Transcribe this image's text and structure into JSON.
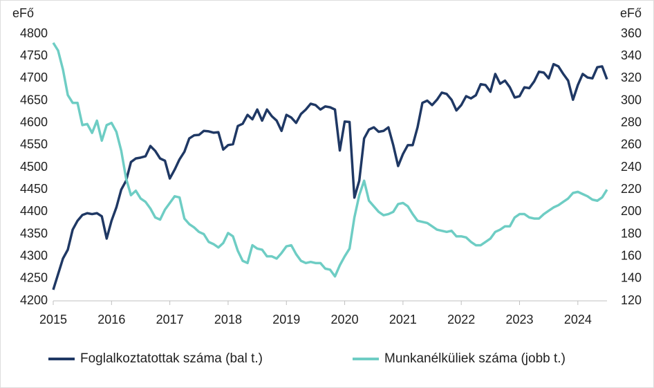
{
  "chart_data": {
    "type": "line",
    "y_label": "eFő",
    "y2_label": "eFő",
    "categories": [
      "2015",
      null,
      null,
      null,
      null,
      null,
      null,
      null,
      null,
      null,
      null,
      null,
      "2016",
      null,
      null,
      null,
      null,
      null,
      null,
      null,
      null,
      null,
      null,
      null,
      "2017",
      null,
      null,
      null,
      null,
      null,
      null,
      null,
      null,
      null,
      null,
      null,
      "2018",
      null,
      null,
      null,
      null,
      null,
      null,
      null,
      null,
      null,
      null,
      null,
      "2019",
      null,
      null,
      null,
      null,
      null,
      null,
      null,
      null,
      null,
      null,
      null,
      "2020",
      null,
      null,
      null,
      null,
      null,
      null,
      null,
      null,
      null,
      null,
      null,
      "2021",
      null,
      null,
      null,
      null,
      null,
      null,
      null,
      null,
      null,
      null,
      null,
      "2022",
      null,
      null,
      null,
      null,
      null,
      null,
      null,
      null,
      null,
      null,
      null,
      "2023",
      null,
      null,
      null,
      null,
      null,
      null,
      null,
      null,
      null,
      null,
      null,
      "2024",
      null,
      null,
      null,
      null,
      null,
      null
    ],
    "series": [
      {
        "name": "Foglalkoztatottak száma (bal t.)",
        "color": "#1f3864",
        "axis": "y",
        "values": [
          4225,
          4260,
          4295,
          4315,
          4360,
          4380,
          4393,
          4397,
          4395,
          4397,
          4390,
          4340,
          4380,
          4410,
          4450,
          4470,
          4512,
          4520,
          4522,
          4525,
          4548,
          4537,
          4520,
          4515,
          4475,
          4495,
          4518,
          4535,
          4565,
          4572,
          4573,
          4582,
          4581,
          4578,
          4579,
          4540,
          4550,
          4552,
          4593,
          4598,
          4618,
          4608,
          4630,
          4605,
          4630,
          4615,
          4605,
          4582,
          4618,
          4612,
          4600,
          4620,
          4630,
          4643,
          4640,
          4630,
          4637,
          4635,
          4630,
          4538,
          4603,
          4602,
          4432,
          4470,
          4565,
          4585,
          4590,
          4580,
          4582,
          4590,
          4550,
          4503,
          4530,
          4550,
          4550,
          4590,
          4645,
          4650,
          4640,
          4652,
          4668,
          4665,
          4652,
          4628,
          4640,
          4660,
          4655,
          4662,
          4687,
          4685,
          4670,
          4710,
          4688,
          4695,
          4680,
          4657,
          4660,
          4680,
          4678,
          4693,
          4715,
          4713,
          4700,
          4732,
          4727,
          4710,
          4695,
          4652,
          4685,
          4710,
          4702,
          4700,
          4725,
          4727,
          4698
        ]
      },
      {
        "name": "Munkanélküliek száma (jobb t.)",
        "color": "#6ecdc4",
        "axis": "y2",
        "values": [
          352,
          345,
          328,
          305,
          298,
          298,
          278,
          279,
          271,
          282,
          264,
          278,
          280,
          272,
          255,
          230,
          215,
          219,
          212,
          209,
          203,
          195,
          193,
          202,
          208,
          214,
          213,
          194,
          189,
          186,
          182,
          180,
          173,
          171,
          168,
          172,
          181,
          178,
          165,
          156,
          154,
          170,
          167,
          166,
          160,
          160,
          158,
          163,
          169,
          170,
          162,
          156,
          154,
          155,
          154,
          154,
          149,
          148,
          142,
          152,
          160,
          167,
          195,
          215,
          228,
          210,
          205,
          200,
          197,
          198,
          200,
          207,
          208,
          205,
          198,
          192,
          191,
          190,
          187,
          184,
          183,
          182,
          183,
          178,
          178,
          177,
          173,
          170,
          170,
          173,
          176,
          182,
          184,
          187,
          187,
          195,
          198,
          198,
          195,
          194,
          194,
          198,
          201,
          204,
          206,
          209,
          212,
          217,
          218,
          216,
          214,
          211,
          210,
          213,
          220
        ]
      }
    ],
    "ylim": [
      4200,
      4800
    ],
    "yticks": [
      4200,
      4250,
      4300,
      4350,
      4400,
      4450,
      4500,
      4550,
      4600,
      4650,
      4700,
      4750,
      4800
    ],
    "y2lim": [
      120,
      360
    ],
    "y2ticks": [
      120,
      140,
      160,
      180,
      200,
      220,
      240,
      260,
      280,
      300,
      320,
      340,
      360
    ],
    "grid": false,
    "legend": "bottom"
  }
}
